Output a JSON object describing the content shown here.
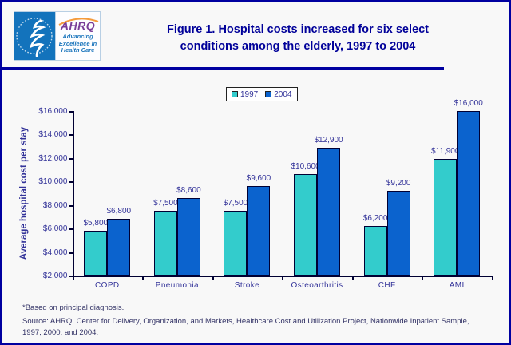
{
  "header": {
    "logo": {
      "ahrq_wordmark": "AHRQ",
      "tagline_lines": [
        "Advancing",
        "Excellence in",
        "Health Care"
      ]
    },
    "title_lines": [
      "Figure 1. Hospital costs increased for six select",
      "conditions among the elderly, 1997 to 2004"
    ]
  },
  "chart_data": {
    "type": "bar",
    "title": "Figure 1. Hospital costs increased for six select conditions among the elderly, 1997 to 2004",
    "categories": [
      "COPD",
      "Pneumonia",
      "Stroke",
      "Osteoarthritis",
      "CHF",
      "AMI"
    ],
    "series": [
      {
        "name": "1997",
        "color": "#33CCCC",
        "values": [
          5800,
          7500,
          7500,
          10600,
          6200,
          11900
        ],
        "value_labels": [
          "$5,800",
          "$7,500",
          "$7,500",
          "$10,600",
          "$6,200",
          "$11,900"
        ]
      },
      {
        "name": "2004",
        "color": "#0B63CE",
        "values": [
          6800,
          8600,
          9600,
          12900,
          9200,
          16000
        ],
        "value_labels": [
          "$6,800",
          "$8,600",
          "$9,600",
          "$12,900",
          "$9,200",
          "$16,000"
        ]
      }
    ],
    "xlabel": "",
    "ylabel": "Average hospital cost per stay",
    "ylim": [
      2000,
      16000
    ],
    "ytick_step": 2000,
    "ytick_labels": [
      "$2,000",
      "$4,000",
      "$6,000",
      "$8,000",
      "$10,000",
      "$12,000",
      "$14,000",
      "$16,000"
    ],
    "grid": false,
    "legend_position": "top-center"
  },
  "footnotes": {
    "note": "*Based on principal diagnosis.",
    "source_lines": [
      "Source: AHRQ, Center for Delivery, Organization, and Markets, Healthcare Cost and Utilization Project, Nationwide Inpatient Sample,",
      "1997, 2000, and 2004."
    ]
  },
  "colors": {
    "frame_border": "#0000A0",
    "series_1997": "#33CCCC",
    "series_2004": "#0B63CE",
    "title_text": "#000099",
    "axis_label_text": "#333399",
    "footnote_text": "#333366"
  }
}
